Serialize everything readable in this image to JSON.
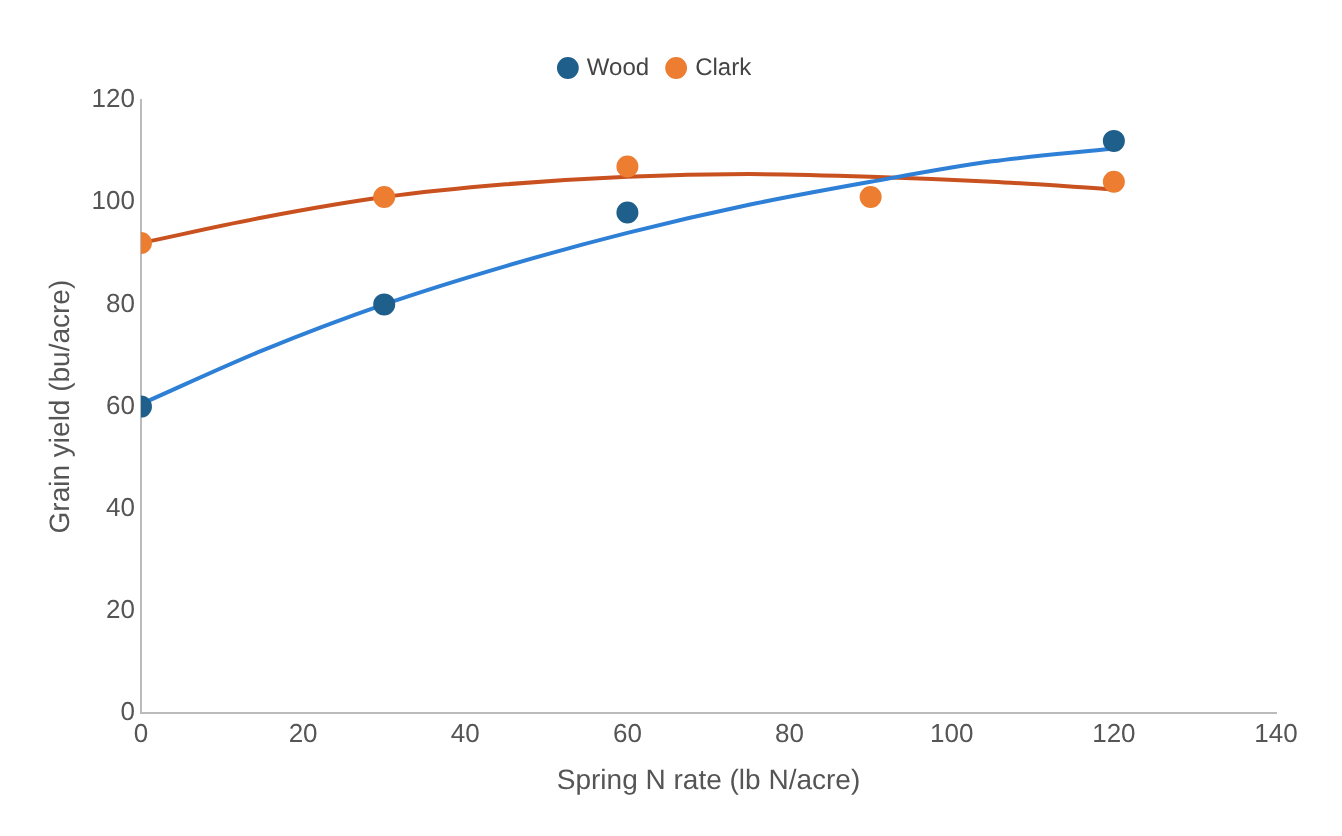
{
  "chart_data": {
    "type": "scatter",
    "xlabel": "Spring N rate (lb N/acre)",
    "ylabel": "Grain yield (bu/acre)",
    "x": [
      0,
      30,
      60,
      90,
      120
    ],
    "series": [
      {
        "name": "Wood",
        "color": "#1f5f8b",
        "values": [
          60,
          80,
          98,
          null,
          112
        ]
      },
      {
        "name": "Clark",
        "color": "#ed7d31",
        "values": [
          92,
          101,
          107,
          101,
          104
        ]
      },
      {
        "type": "line",
        "marker": "none",
        "color": "#2e7fd6",
        "x": [
          0,
          15,
          30,
          45,
          60,
          75,
          90,
          105,
          120
        ],
        "values": [
          60.5,
          71,
          80,
          87.5,
          94,
          99.5,
          104,
          108,
          110.5
        ]
      },
      {
        "type": "line",
        "marker": "none",
        "color": "#c9511f",
        "x": [
          0,
          15,
          30,
          45,
          60,
          75,
          90,
          105,
          120
        ],
        "values": [
          92,
          97,
          101,
          103.5,
          105,
          105.5,
          105,
          104,
          102.5
        ]
      }
    ],
    "xlim": [
      0,
      140
    ],
    "xticks": [
      0,
      20,
      40,
      60,
      80,
      100,
      120,
      140
    ],
    "ylim": [
      0,
      120
    ],
    "yticks": [
      0,
      20,
      40,
      60,
      80,
      100,
      120
    ],
    "grid": false,
    "legend": "top",
    "marker": "circle"
  }
}
